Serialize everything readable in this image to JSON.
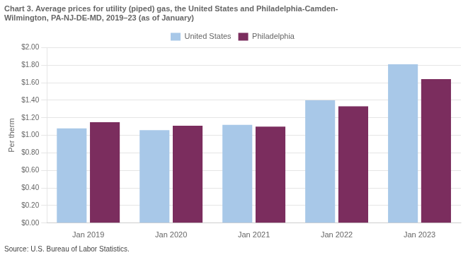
{
  "chart_data": {
    "type": "bar",
    "title": [
      "Chart 3. Average prices for utility (piped) gas, the United States and Philadelphia-Camden-",
      "Wilmington, PA-NJ-DE-MD, 2019–23 (as of January)"
    ],
    "ylabel": "Per therm",
    "annotations": [
      "Source: U.S. Bureau of Labor Statistics."
    ],
    "categories": [
      "Jan 2019",
      "Jan 2020",
      "Jan 2021",
      "Jan 2022",
      "Jan 2023"
    ],
    "series": [
      {
        "name": "United States",
        "color": "#a8c8e8",
        "values": [
          1.08,
          1.06,
          1.12,
          1.4,
          1.81
        ]
      },
      {
        "name": "Philadelphia",
        "color": "#7B2D5E",
        "values": [
          1.15,
          1.11,
          1.1,
          1.33,
          1.64
        ]
      }
    ],
    "ylim": [
      0.0,
      2.0
    ],
    "yticks": [
      {
        "value": 0.0,
        "label": "$0.00"
      },
      {
        "value": 0.2,
        "label": "$0.20"
      },
      {
        "value": 0.4,
        "label": "$0.40"
      },
      {
        "value": 0.6,
        "label": "$0.60"
      },
      {
        "value": 0.8,
        "label": "$0.80"
      },
      {
        "value": 1.0,
        "label": "$1.00"
      },
      {
        "value": 1.2,
        "label": "$1.20"
      },
      {
        "value": 1.4,
        "label": "$1.40"
      },
      {
        "value": 1.6,
        "label": "$1.60"
      },
      {
        "value": 1.8,
        "label": "$1.80"
      },
      {
        "value": 2.0,
        "label": "$2.00"
      }
    ],
    "grid": true,
    "legend": "top"
  }
}
